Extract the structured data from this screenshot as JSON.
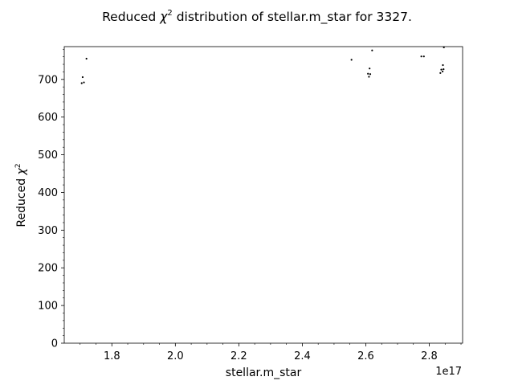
{
  "chart_data": {
    "type": "scatter",
    "title": "Reduced χ² distribution of stellar.m_star for 3327.",
    "title_prefix": "Reduced ",
    "title_symbol": "χ",
    "title_sup": "2",
    "title_suffix": " distribution of stellar.m_star for 3327.",
    "xlabel": "stellar.m_star",
    "ylabel": "Reduced χ²",
    "ylabel_prefix": "Reduced ",
    "ylabel_symbol": "χ",
    "ylabel_sup": "2",
    "x_offset_label": "1e17",
    "x_scale": 1e+17,
    "xlim": [
      1.65,
      2.905
    ],
    "ylim": [
      0,
      787
    ],
    "x_ticks": [
      1.8,
      2.0,
      2.2,
      2.4,
      2.6,
      2.8
    ],
    "x_tick_labels": [
      "1.8",
      "2.0",
      "2.2",
      "2.4",
      "2.6",
      "2.8"
    ],
    "y_ticks": [
      0,
      100,
      200,
      300,
      400,
      500,
      600,
      700
    ],
    "y_tick_labels": [
      "0",
      "100",
      "200",
      "300",
      "400",
      "500",
      "600",
      "700"
    ],
    "grid": false,
    "marker_color": "#000000",
    "series": [
      {
        "points": [
          {
            "x": 1.705,
            "y": 690
          },
          {
            "x": 1.708,
            "y": 706
          },
          {
            "x": 1.712,
            "y": 692
          },
          {
            "x": 1.72,
            "y": 755
          },
          {
            "x": 2.555,
            "y": 752
          },
          {
            "x": 2.607,
            "y": 715
          },
          {
            "x": 2.61,
            "y": 707
          },
          {
            "x": 2.612,
            "y": 729
          },
          {
            "x": 2.614,
            "y": 714
          },
          {
            "x": 2.62,
            "y": 777
          },
          {
            "x": 2.775,
            "y": 761
          },
          {
            "x": 2.783,
            "y": 761
          },
          {
            "x": 2.835,
            "y": 717
          },
          {
            "x": 2.838,
            "y": 726
          },
          {
            "x": 2.842,
            "y": 721
          },
          {
            "x": 2.843,
            "y": 738
          },
          {
            "x": 2.845,
            "y": 727
          },
          {
            "x": 2.846,
            "y": 785
          }
        ]
      }
    ]
  }
}
